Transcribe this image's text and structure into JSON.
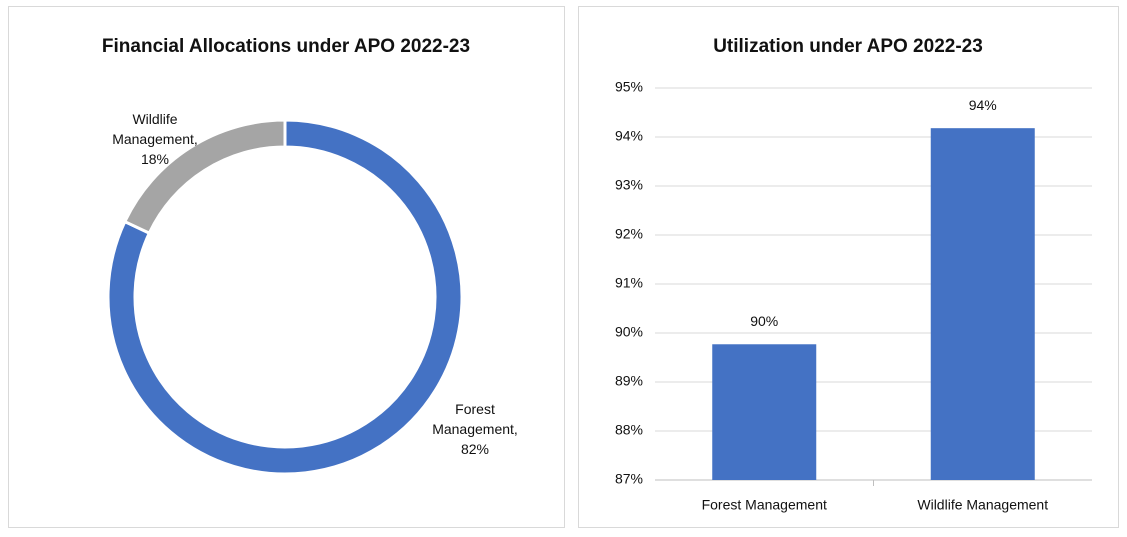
{
  "chart_data": [
    {
      "type": "donut",
      "title": "Financial Allocations under APO 2022-23",
      "categories": [
        "Forest Management",
        "Wildlife Management"
      ],
      "values": [
        82,
        18
      ],
      "value_labels": [
        "Forest Management, 82%",
        "Wildlife Management, 18%"
      ],
      "colors": [
        "#4472c4",
        "#a5a5a5"
      ]
    },
    {
      "type": "bar",
      "title": "Utilization under APO 2022-23",
      "categories": [
        "Forest Management",
        "Wildlife Management"
      ],
      "values": [
        89.77,
        94.18
      ],
      "value_labels": [
        "90%",
        "94%"
      ],
      "color": "#4472c4",
      "ylim": [
        87,
        95
      ],
      "yticks": [
        {
          "value": 87,
          "label": "87%"
        },
        {
          "value": 88,
          "label": "88%"
        },
        {
          "value": 89,
          "label": "89%"
        },
        {
          "value": 90,
          "label": "90%"
        },
        {
          "value": 91,
          "label": "91%"
        },
        {
          "value": 92,
          "label": "92%"
        },
        {
          "value": 93,
          "label": "93%"
        },
        {
          "value": 94,
          "label": "94%"
        },
        {
          "value": 95,
          "label": "95%"
        }
      ],
      "grid": true
    }
  ]
}
